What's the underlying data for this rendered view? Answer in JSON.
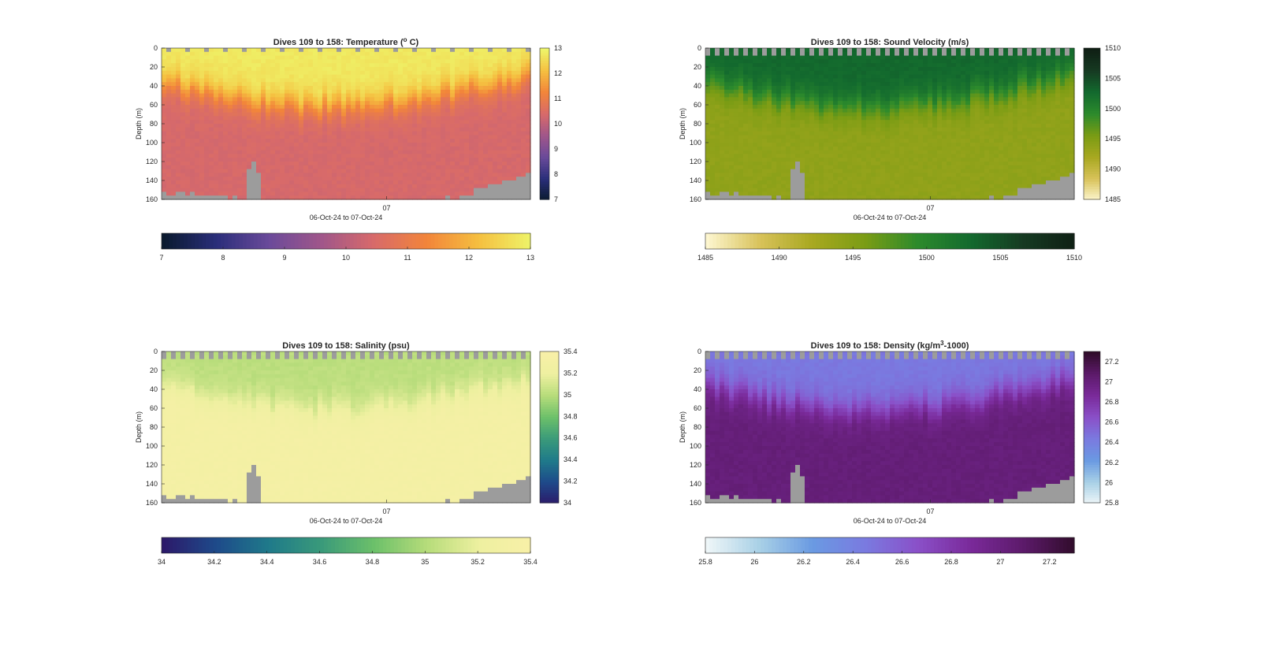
{
  "chart_data": [
    {
      "type": "heatmap",
      "title_prefix": "Dives 109 to 158: Temperature (",
      "title_sup": "o",
      "title_suffix": " C)",
      "ylabel": "Depth (m)",
      "xlabel": "06-Oct-24 to 07-Oct-24",
      "xtick": "07",
      "yticks": [
        0,
        20,
        40,
        60,
        80,
        100,
        120,
        140,
        160
      ],
      "ylim": [
        0,
        160
      ],
      "clim": [
        7,
        13
      ],
      "cbar_ticks_side": [
        7,
        8,
        9,
        10,
        11,
        12,
        13
      ],
      "cbar_ticks_bottom": [
        7,
        8,
        9,
        10,
        11,
        12,
        13
      ],
      "colormap": [
        "#0a1a2e",
        "#2a2e7a",
        "#6a4a9a",
        "#a0568a",
        "#d86a6a",
        "#f2853a",
        "#f5c040",
        "#eef56a"
      ],
      "mask_color": "#9c9c9c",
      "layers_desc": [
        "warm mixed layer ~12.8 upper 30-60 m",
        "thermocline to ~10.5 below 80 m"
      ]
    },
    {
      "type": "heatmap",
      "title_prefix": "Dives 109 to 158: Sound Velocity (m/s)",
      "title_sup": "",
      "title_suffix": "",
      "ylabel": "Depth (m)",
      "xlabel": "06-Oct-24 to 07-Oct-24",
      "xtick": "07",
      "yticks": [
        0,
        20,
        40,
        60,
        80,
        100,
        120,
        140,
        160
      ],
      "ylim": [
        0,
        160
      ],
      "clim": [
        1485,
        1510
      ],
      "cbar_ticks_side": [
        1485,
        1490,
        1495,
        1500,
        1505,
        1510
      ],
      "cbar_ticks_bottom": [
        1485,
        1490,
        1495,
        1500,
        1505,
        1510
      ],
      "colormap": [
        "#fdf6cf",
        "#d8c25a",
        "#a8a820",
        "#7a9c14",
        "#2c8a2c",
        "#136a2e",
        "#163a22",
        "#0f1f14"
      ],
      "mask_color": "#9c9c9c",
      "layers_desc": [
        "~1503 upper 40-60 m",
        "~1494 below"
      ]
    },
    {
      "type": "heatmap",
      "title_prefix": "Dives 109 to 158: Salinity (psu)",
      "title_sup": "",
      "title_suffix": "",
      "ylabel": "Depth (m)",
      "xlabel": "06-Oct-24 to 07-Oct-24",
      "xtick": "07",
      "yticks": [
        0,
        20,
        40,
        60,
        80,
        100,
        120,
        140,
        160
      ],
      "ylim": [
        0,
        160
      ],
      "clim": [
        34,
        35.4
      ],
      "cbar_ticks_side": [
        34,
        34.2,
        34.4,
        34.6,
        34.8,
        35,
        35.2,
        35.4
      ],
      "cbar_ticks_bottom": [
        34,
        34.2,
        34.4,
        34.6,
        34.8,
        35,
        35.2,
        35.4
      ],
      "colormap": [
        "#2c1a6a",
        "#1e4a8a",
        "#1f7a8a",
        "#3a9a7a",
        "#6cc06a",
        "#b6dc7a",
        "#eef0a0",
        "#f8f0a8"
      ],
      "mask_color": "#9c9c9c",
      "layers_desc": [
        "~35.05 upper 20-40 m",
        "~35.3 below"
      ]
    },
    {
      "type": "heatmap",
      "title_prefix": "Dives 109 to 158: Density (kg/m",
      "title_sup": "3",
      "title_suffix": "-1000)",
      "ylabel": "Depth (m)",
      "xlabel": "06-Oct-24 to 07-Oct-24",
      "xtick": "07",
      "yticks": [
        0,
        20,
        40,
        60,
        80,
        100,
        120,
        140,
        160
      ],
      "ylim": [
        0,
        160
      ],
      "clim": [
        25.8,
        27.3
      ],
      "cbar_ticks_side": [
        26,
        26.2,
        26.4,
        26.6,
        26.8,
        27,
        27.2
      ],
      "cbar_side_extra_bottom": 25.8,
      "cbar_ticks_bottom": [
        25.8,
        26,
        26.2,
        26.4,
        26.6,
        26.8,
        27,
        27.2
      ],
      "colormap": [
        "#eef6f8",
        "#a8d0e6",
        "#6a9ae2",
        "#7a7ae0",
        "#8a50c8",
        "#7a2a9a",
        "#5c1a6a",
        "#300c2a"
      ],
      "mask_color": "#9c9c9c",
      "layers_desc": [
        "~26.45 upper 40-60 m",
        "~27.0 below"
      ]
    }
  ]
}
